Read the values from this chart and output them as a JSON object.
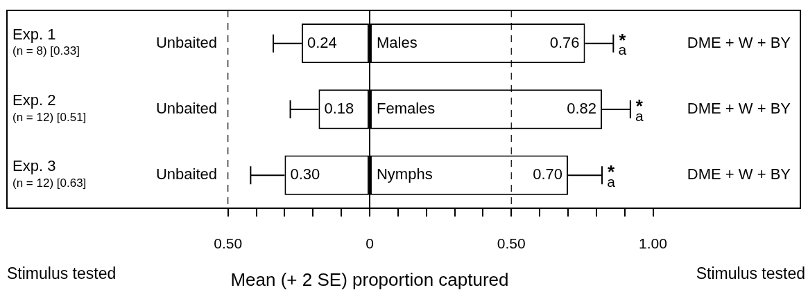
{
  "chart_data": {
    "type": "bar",
    "orientation": "horizontal",
    "xlabel": "Mean (+ 2 SE) proportion captured",
    "categories": [
      "Exp. 1\n(n = 8) [0.33]",
      "Exp. 2\n(n = 12) [0.51]",
      "Exp. 3\n(n = 12) [0.63]"
    ],
    "series": [
      {
        "color": "#ffffff",
        "base": [
          -0.24,
          -0.18,
          -0.3
        ],
        "values": [
          0.24,
          0.18,
          0.3
        ],
        "value_labels": [
          "0.24",
          "0.18",
          "0.30"
        ],
        "errors": [
          [
            -0.34,
            -0.24
          ],
          [
            -0.28,
            -0.18
          ],
          [
            -0.42,
            -0.3
          ]
        ]
      },
      {
        "color": "#ffffff",
        "values": [
          0.76,
          0.82,
          0.7
        ],
        "value_labels": [
          "0.76",
          "0.82",
          "0.70"
        ],
        "errors": [
          [
            0.76,
            0.86
          ],
          [
            0.82,
            0.92
          ],
          [
            0.7,
            0.82
          ]
        ]
      }
    ],
    "xlim": [
      -1.28,
      1.52
    ],
    "xticks": [
      {
        "value": -0.5,
        "label": "0.50"
      },
      {
        "value": -0.4,
        "label": null
      },
      {
        "value": -0.3,
        "label": null
      },
      {
        "value": -0.2,
        "label": null
      },
      {
        "value": -0.1,
        "label": null
      },
      0,
      {
        "value": 0.1,
        "label": null
      },
      {
        "value": 0.2,
        "label": null
      },
      {
        "value": 0.3,
        "label": null
      },
      {
        "value": 0.4,
        "label": null
      },
      {
        "value": 0.5,
        "label": "0.50"
      },
      {
        "value": 0.6,
        "label": null
      },
      {
        "value": 0.7,
        "label": null
      },
      {
        "value": 0.8,
        "label": null
      },
      {
        "value": 0.9,
        "label": null
      },
      {
        "value": 1.0,
        "label": "1.00"
      }
    ],
    "ref_lines": [
      {
        "axis": "x",
        "value": -0.5,
        "line_style": "dashed"
      },
      {
        "axis": "x",
        "value": 0,
        "line_style": "solid"
      },
      {
        "axis": "x",
        "value": 0.5,
        "line_style": "dashed"
      }
    ],
    "grid": false,
    "legend": false,
    "annotations": [
      "Stimulus tested",
      "Stimulus tested",
      "Unbaited",
      "Males",
      "*",
      "a",
      "DME + W + BY",
      "Unbaited",
      "Females",
      "*",
      "a",
      "DME + W + BY",
      "Unbaited",
      "Nymphs",
      "*",
      "a",
      "DME + W + BY"
    ]
  }
}
